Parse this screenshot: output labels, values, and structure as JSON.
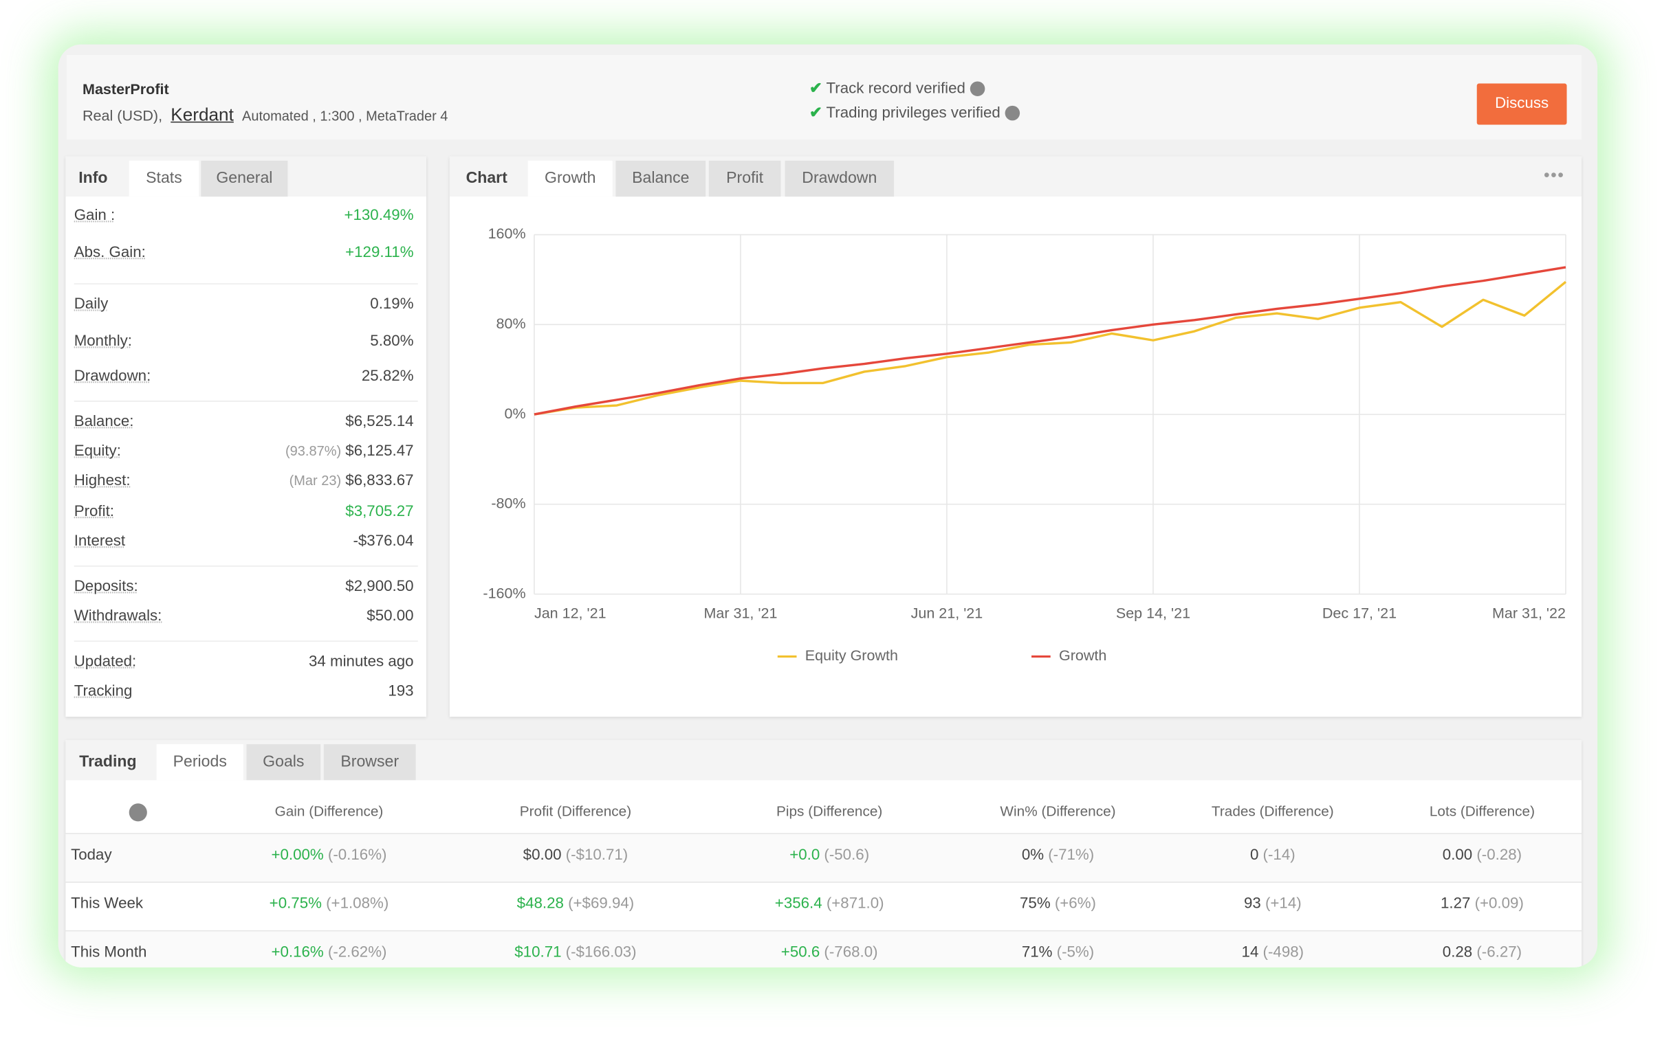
{
  "header": {
    "name": "MasterProfit",
    "account": "Real (USD),",
    "broker": "Kerdant",
    "details": "Automated , 1:300 , MetaTrader 4",
    "verified": [
      "Track record verified",
      "Trading privileges verified"
    ],
    "button": "Discuss"
  },
  "info_panel": {
    "tabs": [
      "Info",
      "Stats",
      "General"
    ],
    "groups": [
      [
        {
          "label": "Gain :",
          "value": "+130.49%",
          "color": "#2bb24c"
        },
        {
          "label": "Abs. Gain:",
          "value": "+129.11%",
          "color": "#2bb24c"
        }
      ],
      [
        {
          "label": "Daily",
          "value": "0.19%"
        },
        {
          "label": "Monthly:",
          "value": "5.80%"
        },
        {
          "label": "Drawdown:",
          "value": "25.82%"
        }
      ],
      [
        {
          "label": "Balance:",
          "value": "$6,525.14"
        },
        {
          "label": "Equity:",
          "note": "(93.87%)",
          "value": "$6,125.47"
        },
        {
          "label": "Highest:",
          "note": "(Mar 23)",
          "value": "$6,833.67"
        },
        {
          "label": "Profit:",
          "value": "$3,705.27",
          "color": "#2bb24c"
        },
        {
          "label": "Interest",
          "value": "-$376.04"
        }
      ],
      [
        {
          "label": "Deposits:",
          "value": "$2,900.50"
        },
        {
          "label": "Withdrawals:",
          "value": "$50.00"
        }
      ],
      [
        {
          "label": "Updated:",
          "value": "34 minutes ago"
        },
        {
          "label": "Tracking",
          "value": "193"
        }
      ]
    ]
  },
  "chart_panel": {
    "tabs": [
      "Chart",
      "Growth",
      "Balance",
      "Profit",
      "Drawdown"
    ],
    "chart_data": {
      "type": "line",
      "x": [
        "2021-01-12",
        "2021-01-28",
        "2021-02-13",
        "2021-02-28",
        "2021-03-15",
        "2021-03-31",
        "2021-04-16",
        "2021-05-02",
        "2021-05-18",
        "2021-06-05",
        "2021-06-21",
        "2021-07-08",
        "2021-07-25",
        "2021-08-11",
        "2021-08-28",
        "2021-09-14",
        "2021-10-03",
        "2021-10-22",
        "2021-11-10",
        "2021-11-29",
        "2021-12-17",
        "2022-01-07",
        "2022-01-28",
        "2022-02-18",
        "2022-03-10",
        "2022-03-31"
      ],
      "xticks": [
        {
          "value": "2021-01-12",
          "label": "Jan 12, '21"
        },
        {
          "value": "2021-03-31",
          "label": "Mar 31, '21"
        },
        {
          "value": "2021-06-21",
          "label": "Jun 21, '21"
        },
        {
          "value": "2021-09-14",
          "label": "Sep 14, '21"
        },
        {
          "value": "2021-12-17",
          "label": "Dec 17, '21"
        },
        {
          "value": "2022-03-31",
          "label": "Mar 31, '22"
        }
      ],
      "ylim": [
        -160,
        160
      ],
      "yticks": [
        {
          "value": -160,
          "label": "-160%"
        },
        {
          "value": -80,
          "label": "-80%"
        },
        {
          "value": 0,
          "label": "0%"
        },
        {
          "value": 80,
          "label": "80%"
        },
        {
          "value": 160,
          "label": "160%"
        }
      ],
      "grid": true,
      "series": [
        {
          "name": "Equity Growth",
          "color": "#f2c12e",
          "values": [
            0,
            6,
            8,
            17,
            24,
            30,
            28,
            28,
            38,
            43,
            51,
            55,
            62,
            64,
            72,
            66,
            74,
            86,
            90,
            85,
            95,
            100,
            78,
            102,
            88,
            118
          ]
        },
        {
          "name": "Growth",
          "color": "#e5473b",
          "values": [
            0,
            7,
            13,
            19,
            26,
            32,
            36,
            41,
            45,
            50,
            54,
            59,
            64,
            69,
            75,
            80,
            84,
            89,
            94,
            98,
            103,
            108,
            114,
            119,
            125,
            131
          ]
        }
      ]
    }
  },
  "periods": {
    "tabs": [
      "Trading",
      "Periods",
      "Goals",
      "Browser"
    ],
    "headers": [
      "Gain (Difference)",
      "Profit (Difference)",
      "Pips (Difference)",
      "Win% (Difference)",
      "Trades (Difference)",
      "Lots (Difference)"
    ],
    "rows": [
      {
        "label": "Today",
        "cells": [
          {
            "value": "+0.00%",
            "diff": "(-0.16%)",
            "color": "#2bb24c"
          },
          {
            "value": "$0.00",
            "diff": "(-$10.71)"
          },
          {
            "value": "+0.0",
            "diff": "(-50.6)",
            "color": "#2bb24c"
          },
          {
            "value": "0%",
            "diff": "(-71%)"
          },
          {
            "value": "0",
            "diff": "(-14)"
          },
          {
            "value": "0.00",
            "diff": "(-0.28)"
          }
        ]
      },
      {
        "label": "This Week",
        "cells": [
          {
            "value": "+0.75%",
            "diff": "(+1.08%)",
            "color": "#2bb24c"
          },
          {
            "value": "$48.28",
            "diff": "(+$69.94)",
            "color": "#2bb24c"
          },
          {
            "value": "+356.4",
            "diff": "(+871.0)",
            "color": "#2bb24c"
          },
          {
            "value": "75%",
            "diff": "(+6%)"
          },
          {
            "value": "93",
            "diff": "(+14)"
          },
          {
            "value": "1.27",
            "diff": "(+0.09)"
          }
        ]
      },
      {
        "label": "This Month",
        "cells": [
          {
            "value": "+0.16%",
            "diff": "(-2.62%)",
            "color": "#2bb24c"
          },
          {
            "value": "$10.71",
            "diff": "(-$166.03)",
            "color": "#2bb24c"
          },
          {
            "value": "+50.6",
            "diff": "(-768.0)",
            "color": "#2bb24c"
          },
          {
            "value": "71%",
            "diff": "(-5%)"
          },
          {
            "value": "14",
            "diff": "(-498)"
          },
          {
            "value": "0.28",
            "diff": "(-6.27)"
          }
        ]
      }
    ]
  }
}
